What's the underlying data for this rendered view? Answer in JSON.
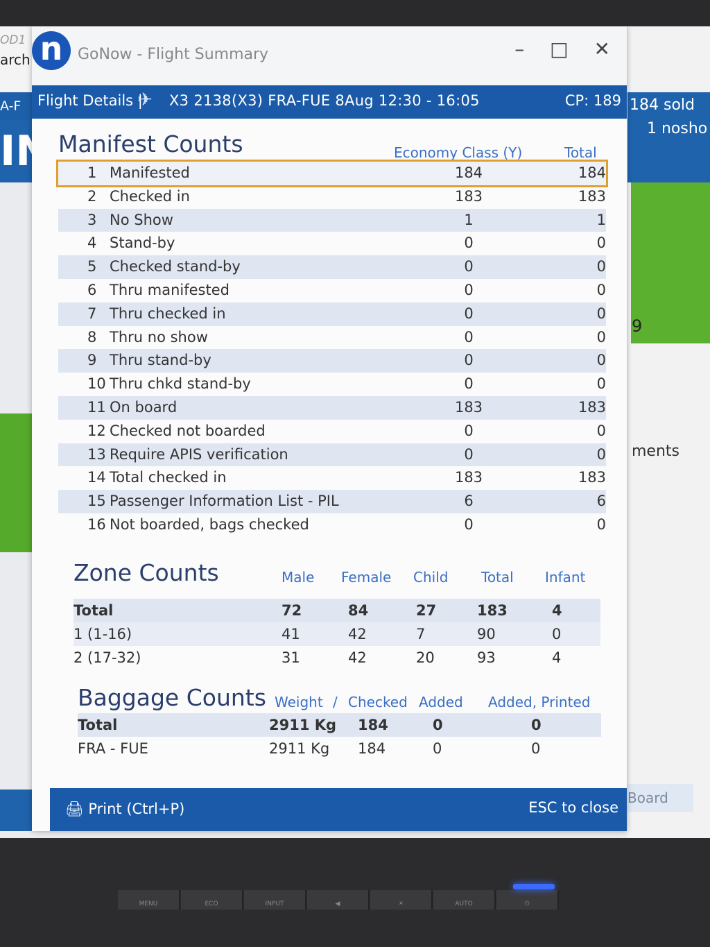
{
  "background": {
    "left_top_line1": "OD1",
    "left_top_line2": "arch",
    "left_bar_text": "A-F",
    "left_big_letters": "IN",
    "right_sold": "184 sold",
    "right_nosho": "1 nosho",
    "right_nine": "9",
    "right_ments": "ments",
    "right_board": "Board"
  },
  "window": {
    "logo_letter": "n",
    "title": "GoNow - Flight Summary",
    "minimize": "–",
    "maximize": "□",
    "close": "✕"
  },
  "flight": {
    "label": "Flight Details |",
    "info": "X3 2138(X3)  FRA-FUE  8Aug 12:30 - 16:05",
    "cp": "CP: 189"
  },
  "manifest": {
    "title": "Manifest Counts",
    "col_economy": "Economy Class (Y)",
    "col_total": "Total",
    "rows": [
      {
        "num": "1",
        "label": "Manifested",
        "eco": "184",
        "total": "184"
      },
      {
        "num": "2",
        "label": "Checked in",
        "eco": "183",
        "total": "183"
      },
      {
        "num": "3",
        "label": "No Show",
        "eco": "1",
        "total": "1"
      },
      {
        "num": "4",
        "label": "Stand-by",
        "eco": "0",
        "total": "0"
      },
      {
        "num": "5",
        "label": "Checked stand-by",
        "eco": "0",
        "total": "0"
      },
      {
        "num": "6",
        "label": "Thru manifested",
        "eco": "0",
        "total": "0"
      },
      {
        "num": "7",
        "label": "Thru checked in",
        "eco": "0",
        "total": "0"
      },
      {
        "num": "8",
        "label": "Thru no show",
        "eco": "0",
        "total": "0"
      },
      {
        "num": "9",
        "label": "Thru stand-by",
        "eco": "0",
        "total": "0"
      },
      {
        "num": "10",
        "label": "Thru chkd stand-by",
        "eco": "0",
        "total": "0"
      },
      {
        "num": "11",
        "label": "On board",
        "eco": "183",
        "total": "183"
      },
      {
        "num": "12",
        "label": "Checked not boarded",
        "eco": "0",
        "total": "0"
      },
      {
        "num": "13",
        "label": "Require APIS verification",
        "eco": "0",
        "total": "0"
      },
      {
        "num": "14",
        "label": "Total checked in",
        "eco": "183",
        "total": "183"
      },
      {
        "num": "15",
        "label": "Passenger Information List - PIL",
        "eco": "6",
        "total": "6"
      },
      {
        "num": "16",
        "label": "Not boarded, bags checked",
        "eco": "0",
        "total": "0"
      }
    ]
  },
  "zone": {
    "title": "Zone Counts",
    "headers": {
      "male": "Male",
      "female": "Female",
      "child": "Child",
      "total": "Total",
      "infant": "Infant"
    },
    "rows": [
      {
        "label": "Total",
        "male": "72",
        "female": "84",
        "child": "27",
        "total": "183",
        "infant": "4"
      },
      {
        "label": "1 (1-16)",
        "male": "41",
        "female": "42",
        "child": "7",
        "total": "90",
        "infant": "0"
      },
      {
        "label": "2 (17-32)",
        "male": "31",
        "female": "42",
        "child": "20",
        "total": "93",
        "infant": "4"
      }
    ]
  },
  "baggage": {
    "title": "Baggage Counts",
    "headers": {
      "weight": "Weight",
      "sep": "/",
      "checked": "Checked",
      "added": "Added",
      "added_printed": "Added, Printed"
    },
    "rows": [
      {
        "label": "Total",
        "weight": "2911 Kg",
        "checked": "184",
        "added": "0",
        "added_printed": "0"
      },
      {
        "label": "FRA - FUE",
        "weight": "2911 Kg",
        "checked": "184",
        "added": "0",
        "added_printed": "0"
      }
    ]
  },
  "footer": {
    "print": "Print (Ctrl+P)",
    "esc": "ESC to close"
  },
  "bezel_buttons": [
    "MENU",
    "ECO",
    "INPUT",
    "◀",
    "☀",
    "AUTO",
    "⏻"
  ]
}
